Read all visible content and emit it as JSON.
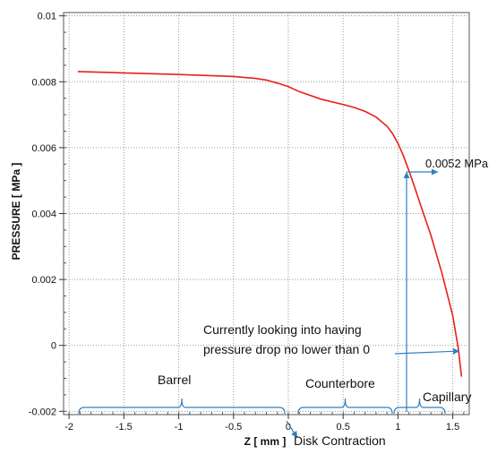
{
  "chart_data": {
    "type": "line",
    "title": "",
    "xlabel": "Z [ mm ]",
    "ylabel": "PRESSURE [ MPa ]",
    "xlim": [
      -2.05,
      1.65
    ],
    "ylim": [
      -0.0021,
      0.0101
    ],
    "x_ticks": [
      -2,
      -1.5,
      -1,
      -0.5,
      0,
      0.5,
      1,
      1.5
    ],
    "x_tick_labels": [
      "-2",
      "-1.5",
      "-1",
      "-0.5",
      "0",
      "0.5",
      "1",
      "1.5"
    ],
    "y_ticks": [
      -0.002,
      0,
      0.002,
      0.004,
      0.006,
      0.008,
      0.01
    ],
    "y_tick_labels": [
      "-0.002",
      "0",
      "0.002",
      "0.004",
      "0.006",
      "0.008",
      "0.01"
    ],
    "grid": true,
    "colors": {
      "line": "#e8201c",
      "annotation": "#2f7fc1",
      "grid": "#9a9a9a"
    },
    "series": [
      {
        "x": [
          -1.92,
          -1.5,
          -1.0,
          -0.5,
          -0.3,
          -0.2,
          -0.1,
          0.0,
          0.1,
          0.3,
          0.5,
          0.6,
          0.7,
          0.8,
          0.9,
          0.95,
          1.0,
          1.05,
          1.1,
          1.15,
          1.2,
          1.3,
          1.4,
          1.5,
          1.55,
          1.58
        ],
        "y": [
          0.00831,
          0.00827,
          0.00822,
          0.00816,
          0.0081,
          0.00805,
          0.00796,
          0.00785,
          0.0077,
          0.00747,
          0.00731,
          0.00722,
          0.0071,
          0.00693,
          0.00665,
          0.00643,
          0.00613,
          0.00575,
          0.0053,
          0.00482,
          0.00432,
          0.00335,
          0.0022,
          0.0009,
          -0.0001,
          -0.00095
        ]
      }
    ],
    "annotations": {
      "value_label": "0.0052 MPa",
      "note_line1": "Currently looking into having",
      "note_line2": "pressure drop no lower than 0",
      "barrel": "Barrel",
      "counterbore": "Counterbore",
      "capillary": "Capillary",
      "disk_contraction": "Disk Contraction"
    }
  }
}
